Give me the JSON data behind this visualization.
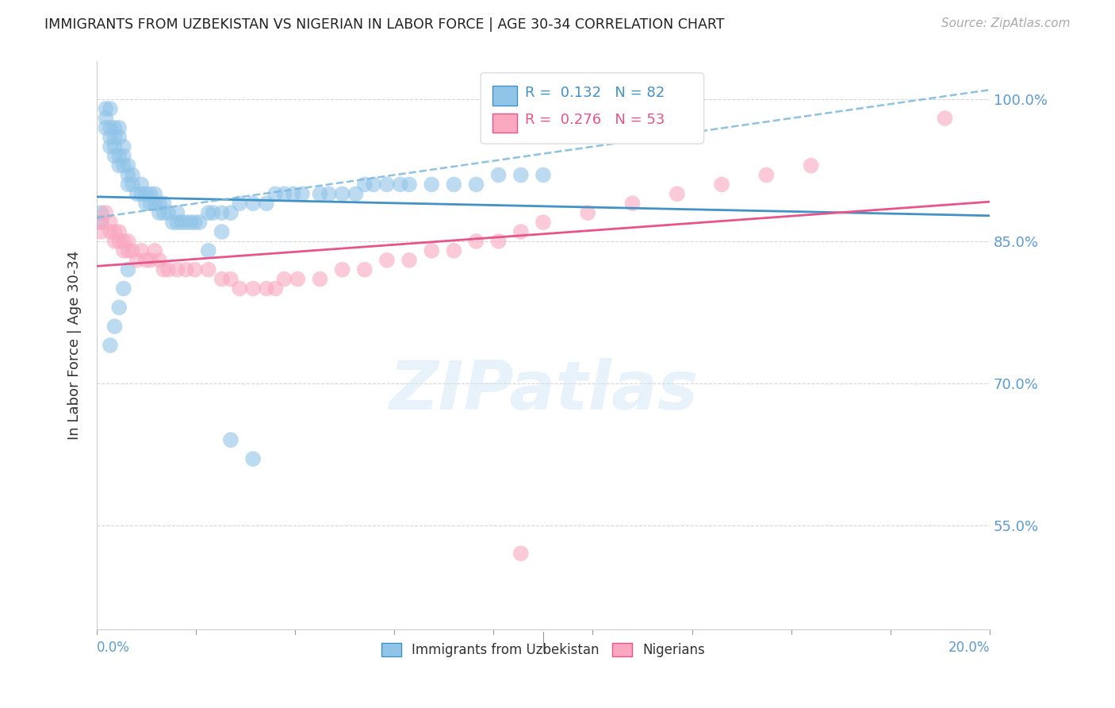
{
  "title": "IMMIGRANTS FROM UZBEKISTAN VS NIGERIAN IN LABOR FORCE | AGE 30-34 CORRELATION CHART",
  "source": "Source: ZipAtlas.com",
  "ylabel": "In Labor Force | Age 30-34",
  "xmin": 0.0,
  "xmax": 0.2,
  "ymin": 0.44,
  "ymax": 1.04,
  "legend_r1": "0.132",
  "legend_n1": "82",
  "legend_r2": "0.276",
  "legend_n2": "53",
  "uzbekistan_color": "#90c4e8",
  "nigerian_color": "#f9a8c0",
  "trendline_uzbekistan_color": "#4292c6",
  "trendline_nigerian_color": "#e8548a",
  "dashed_line_color": "#7ab8e0",
  "watermark": "ZIPatlas",
  "background_color": "#ffffff",
  "grid_color": "#cccccc",
  "axis_color": "#5b9bd5",
  "ytick_vals": [
    0.55,
    0.7,
    0.85,
    1.0
  ],
  "ytick_labels": [
    "55.0%",
    "70.0%",
    "85.0%",
    "100.0%"
  ],
  "uzbekistan_x": [
    0.001,
    0.001,
    0.002,
    0.002,
    0.002,
    0.003,
    0.003,
    0.003,
    0.003,
    0.004,
    0.004,
    0.004,
    0.004,
    0.005,
    0.005,
    0.005,
    0.005,
    0.006,
    0.006,
    0.006,
    0.007,
    0.007,
    0.007,
    0.008,
    0.008,
    0.009,
    0.01,
    0.01,
    0.011,
    0.011,
    0.012,
    0.012,
    0.013,
    0.013,
    0.014,
    0.014,
    0.015,
    0.015,
    0.016,
    0.017,
    0.018,
    0.018,
    0.019,
    0.02,
    0.021,
    0.022,
    0.023,
    0.025,
    0.026,
    0.028,
    0.03,
    0.032,
    0.035,
    0.038,
    0.04,
    0.042,
    0.044,
    0.046,
    0.05,
    0.052,
    0.055,
    0.058,
    0.06,
    0.062,
    0.065,
    0.068,
    0.07,
    0.075,
    0.08,
    0.085,
    0.09,
    0.095,
    0.1,
    0.003,
    0.004,
    0.005,
    0.006,
    0.007,
    0.025,
    0.028,
    0.03,
    0.035
  ],
  "uzbekistan_y": [
    0.88,
    0.87,
    0.99,
    0.98,
    0.97,
    0.99,
    0.97,
    0.96,
    0.95,
    0.97,
    0.96,
    0.95,
    0.94,
    0.97,
    0.96,
    0.94,
    0.93,
    0.95,
    0.94,
    0.93,
    0.93,
    0.92,
    0.91,
    0.92,
    0.91,
    0.9,
    0.91,
    0.9,
    0.9,
    0.89,
    0.9,
    0.89,
    0.9,
    0.89,
    0.89,
    0.88,
    0.89,
    0.88,
    0.88,
    0.87,
    0.88,
    0.87,
    0.87,
    0.87,
    0.87,
    0.87,
    0.87,
    0.88,
    0.88,
    0.88,
    0.88,
    0.89,
    0.89,
    0.89,
    0.9,
    0.9,
    0.9,
    0.9,
    0.9,
    0.9,
    0.9,
    0.9,
    0.91,
    0.91,
    0.91,
    0.91,
    0.91,
    0.91,
    0.91,
    0.91,
    0.92,
    0.92,
    0.92,
    0.74,
    0.76,
    0.78,
    0.8,
    0.82,
    0.84,
    0.86,
    0.64,
    0.62
  ],
  "nigerian_x": [
    0.001,
    0.001,
    0.002,
    0.003,
    0.003,
    0.004,
    0.004,
    0.005,
    0.005,
    0.006,
    0.006,
    0.007,
    0.007,
    0.008,
    0.009,
    0.01,
    0.011,
    0.012,
    0.013,
    0.014,
    0.015,
    0.016,
    0.018,
    0.02,
    0.022,
    0.025,
    0.028,
    0.03,
    0.032,
    0.035,
    0.038,
    0.04,
    0.042,
    0.045,
    0.05,
    0.055,
    0.06,
    0.065,
    0.07,
    0.075,
    0.08,
    0.085,
    0.09,
    0.095,
    0.1,
    0.11,
    0.12,
    0.13,
    0.14,
    0.15,
    0.16,
    0.19,
    0.095
  ],
  "nigerian_y": [
    0.87,
    0.86,
    0.88,
    0.87,
    0.86,
    0.86,
    0.85,
    0.86,
    0.85,
    0.85,
    0.84,
    0.85,
    0.84,
    0.84,
    0.83,
    0.84,
    0.83,
    0.83,
    0.84,
    0.83,
    0.82,
    0.82,
    0.82,
    0.82,
    0.82,
    0.82,
    0.81,
    0.81,
    0.8,
    0.8,
    0.8,
    0.8,
    0.81,
    0.81,
    0.81,
    0.82,
    0.82,
    0.83,
    0.83,
    0.84,
    0.84,
    0.85,
    0.85,
    0.86,
    0.87,
    0.88,
    0.89,
    0.9,
    0.91,
    0.92,
    0.93,
    0.98,
    0.52
  ]
}
